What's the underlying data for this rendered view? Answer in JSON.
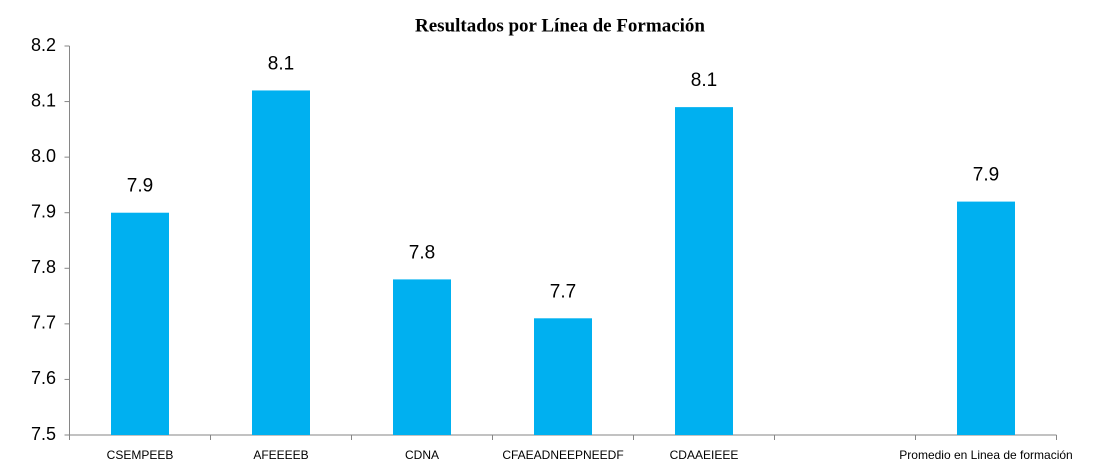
{
  "chart_data": {
    "type": "bar",
    "title": "Resultados por Línea de Formación",
    "categories": [
      "CSEMPEEB",
      "AFEEEEB",
      "CDNA",
      "CFAEADNEEPNEEDF",
      "CDAAEIEEE",
      null,
      "Promedio en Linea de formación"
    ],
    "values": [
      7.9,
      8.12,
      7.78,
      7.71,
      8.09,
      null,
      7.92
    ],
    "value_labels": [
      "7.9",
      "8.1",
      "7.8",
      "7.7",
      "8.1",
      null,
      "7.9"
    ],
    "color": "#00b0f0",
    "ylim": [
      7.5,
      8.2
    ],
    "yticks": [
      7.5,
      7.6,
      7.7,
      7.8,
      7.9,
      {
        "value": 8,
        "label": "8.0"
      },
      8.1,
      8.2
    ],
    "grid": false
  }
}
